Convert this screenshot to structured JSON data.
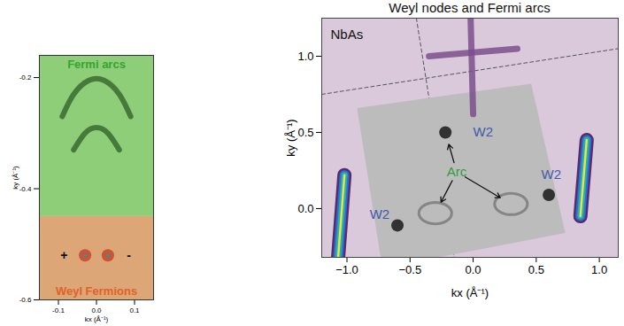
{
  "chart_data": [
    {
      "type": "image",
      "x_label": "kx (Å⁻¹)",
      "y_label": "ky (Å⁻¹)",
      "xlim": [
        -0.15,
        0.15
      ],
      "xticks": [
        -0.1,
        {
          "value": 0,
          "label": "0.0"
        },
        0.1
      ],
      "ylim": [
        -0.6,
        -0.16
      ],
      "yticks": [
        -0.6,
        -0.4,
        -0.2
      ],
      "regions": [
        {
          "name": "Fermi arcs",
          "color": "#8fce78",
          "y1": -0.45,
          "y2": -0.16
        },
        {
          "name": "Weyl Fermions",
          "color": "#dca676",
          "y1": -0.6,
          "y2": -0.45
        }
      ],
      "annotations": [
        {
          "text": "Fermi arcs",
          "x": 0,
          "y": -0.176,
          "color": "#34a334"
        },
        {
          "text": "Weyl Fermions",
          "x": 0,
          "y": -0.585,
          "color": "#e2612a"
        }
      ],
      "arcs": [
        {
          "x": [
            -0.09,
            -0.06,
            -0.02,
            0.02,
            0.06,
            0.09
          ],
          "y": [
            -0.27,
            -0.23,
            -0.205,
            -0.205,
            -0.23,
            -0.27
          ]
        },
        {
          "x": [
            -0.06,
            -0.03,
            0,
            0.03,
            0.06
          ],
          "y": [
            -0.33,
            -0.3,
            -0.29,
            -0.3,
            -0.33
          ]
        }
      ],
      "nodes": [
        {
          "x": -0.03,
          "y": -0.52,
          "label": "+",
          "label_x": -0.085,
          "color": "#c8452e"
        },
        {
          "x": 0.03,
          "y": -0.52,
          "label": "-",
          "label_x": 0.085,
          "color": "#c8452e"
        }
      ]
    },
    {
      "type": "image",
      "title": "Weyl nodes and Fermi arcs",
      "x_label": "kx (Å⁻¹)",
      "y_label": "ky (Å⁻¹)",
      "xlim": [
        -1.2,
        1.15
      ],
      "xticks": [
        {
          "value": -1,
          "label": "−1.0"
        },
        {
          "value": -0.5,
          "label": "−0.5"
        },
        {
          "value": 0,
          "label": "0.0"
        },
        {
          "value": 0.5,
          "label": "0.5"
        },
        {
          "value": 1,
          "label": "1.0"
        }
      ],
      "ylim": [
        -0.32,
        1.25
      ],
      "yticks": [
        {
          "value": 0,
          "label": "0.0"
        },
        {
          "value": 0.5,
          "label": "0.5"
        },
        {
          "value": 1,
          "label": "1.0"
        }
      ],
      "color": "#dac9db",
      "sample": {
        "text": "NbAs",
        "x": -1.13,
        "y": 1.14
      },
      "boundaries": [
        {
          "x": [
            -0.45,
            -0.15
          ],
          "y": [
            1.25,
            -0.32
          ]
        },
        {
          "x": [
            -1.2,
            1.15
          ],
          "y": [
            0.75,
            1.05
          ]
        }
      ],
      "window": {
        "color": "#bcbcbc",
        "x": [
          -0.92,
          0.46,
          0.73,
          -0.72,
          -0.92
        ],
        "y": [
          0.66,
          0.82,
          -0.16,
          -0.39,
          0.66
        ]
      },
      "bands": [
        {
          "x": [
            -0.02,
            0.0
          ],
          "y": [
            1.25,
            0.62
          ]
        },
        {
          "x": [
            -0.35,
            0.35
          ],
          "y": [
            1.0,
            1.05
          ]
        }
      ],
      "pockets": [
        {
          "x": [
            -1.02,
            -1.07
          ],
          "y": [
            0.22,
            -0.32
          ]
        },
        {
          "x": [
            0.9,
            0.85
          ],
          "y": [
            0.45,
            -0.05
          ]
        }
      ],
      "arcs": [
        {
          "x": -0.3,
          "y": -0.03,
          "rx": 0.13,
          "ry": 0.07
        },
        {
          "x": 0.3,
          "y": 0.03,
          "rx": 0.13,
          "ry": 0.07
        }
      ],
      "arc_label": {
        "text": "Arc",
        "x": -0.13,
        "y": 0.24,
        "color": "#2e9e3e"
      },
      "nodes": [
        {
          "label": "W2",
          "x": -0.22,
          "y": 0.5,
          "label_x": 0.0,
          "label_y": 0.5,
          "color": "#3f5aa8"
        },
        {
          "label": "W2",
          "x": -0.6,
          "y": -0.11,
          "label_x": -0.82,
          "label_y": -0.04,
          "color": "#3f5aa8"
        },
        {
          "label": "W2",
          "x": 0.6,
          "y": 0.09,
          "label_x": 0.54,
          "label_y": 0.22,
          "color": "#3f5aa8"
        }
      ]
    }
  ]
}
